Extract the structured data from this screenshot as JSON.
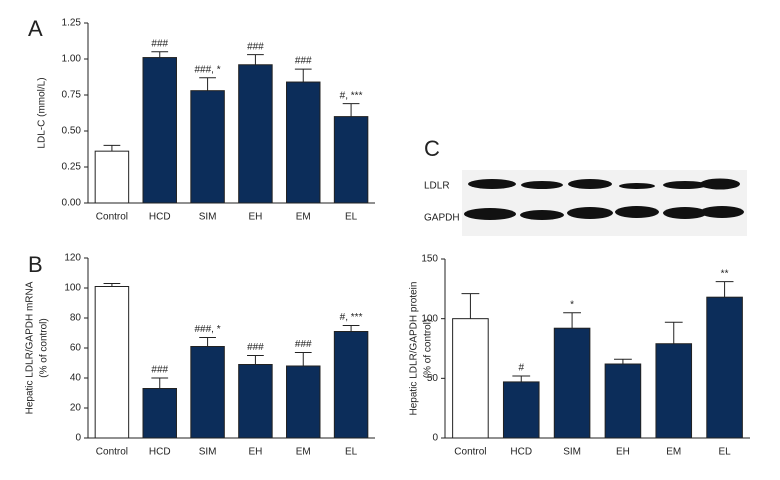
{
  "chart_data": [
    {
      "type": "bar",
      "panel": "A",
      "ylabel": [
        "LDL-C (mmol/L)"
      ],
      "categories": [
        "Control",
        "HCD",
        "SIM",
        "EH",
        "EM",
        "EL"
      ],
      "values": [
        0.36,
        1.01,
        0.78,
        0.96,
        0.84,
        0.6
      ],
      "errors": [
        0.04,
        0.04,
        0.09,
        0.07,
        0.09,
        0.09
      ],
      "annotations": [
        null,
        "###",
        "###, *",
        "###",
        "###",
        "#, ***"
      ],
      "colors": [
        "#ffffff",
        "#0c2d5a",
        "#0c2d5a",
        "#0c2d5a",
        "#0c2d5a",
        "#0c2d5a"
      ],
      "ylim": [
        0,
        1.25
      ],
      "yticks": [
        {
          "value": 0,
          "label": "0.00"
        },
        {
          "value": 0.25,
          "label": "0.25"
        },
        {
          "value": 0.5,
          "label": "0.50"
        },
        {
          "value": 0.75,
          "label": "0.75"
        },
        {
          "value": 1,
          "label": "1.00"
        },
        {
          "value": 1.25,
          "label": "1.25"
        }
      ]
    },
    {
      "type": "bar",
      "panel": "B",
      "ylabel": [
        "Hepatic LDLR/GAPDH mRNA",
        "(% of control)"
      ],
      "categories": [
        "Control",
        "HCD",
        "SIM",
        "EH",
        "EM",
        "EL"
      ],
      "values": [
        101,
        33,
        61,
        49,
        48,
        71
      ],
      "errors": [
        2,
        7,
        6,
        6,
        9,
        4
      ],
      "annotations": [
        null,
        "###",
        "###, *",
        "###",
        "###",
        "#, ***"
      ],
      "colors": [
        "#ffffff",
        "#0c2d5a",
        "#0c2d5a",
        "#0c2d5a",
        "#0c2d5a",
        "#0c2d5a"
      ],
      "ylim": [
        0,
        120
      ],
      "yticks": [
        0,
        20,
        40,
        60,
        80,
        100,
        120
      ]
    },
    {
      "type": "bar",
      "ylabel": [
        "Hepatic LDLR/GAPDH protein",
        "(% of control)"
      ],
      "categories": [
        "Control",
        "HCD",
        "SIM",
        "EH",
        "EM",
        "EL"
      ],
      "values": [
        100,
        47,
        92,
        62,
        79,
        118
      ],
      "errors": [
        21,
        5,
        13,
        4,
        18,
        13
      ],
      "annotations": [
        null,
        "#",
        "*",
        null,
        null,
        "**"
      ],
      "colors": [
        "#ffffff",
        "#0c2d5a",
        "#0c2d5a",
        "#0c2d5a",
        "#0c2d5a",
        "#0c2d5a"
      ],
      "ylim": [
        0,
        150
      ],
      "yticks": [
        0,
        50,
        100,
        150
      ]
    }
  ],
  "blot": {
    "panel": "C",
    "rows": [
      "LDLR",
      "GAPDH"
    ]
  }
}
